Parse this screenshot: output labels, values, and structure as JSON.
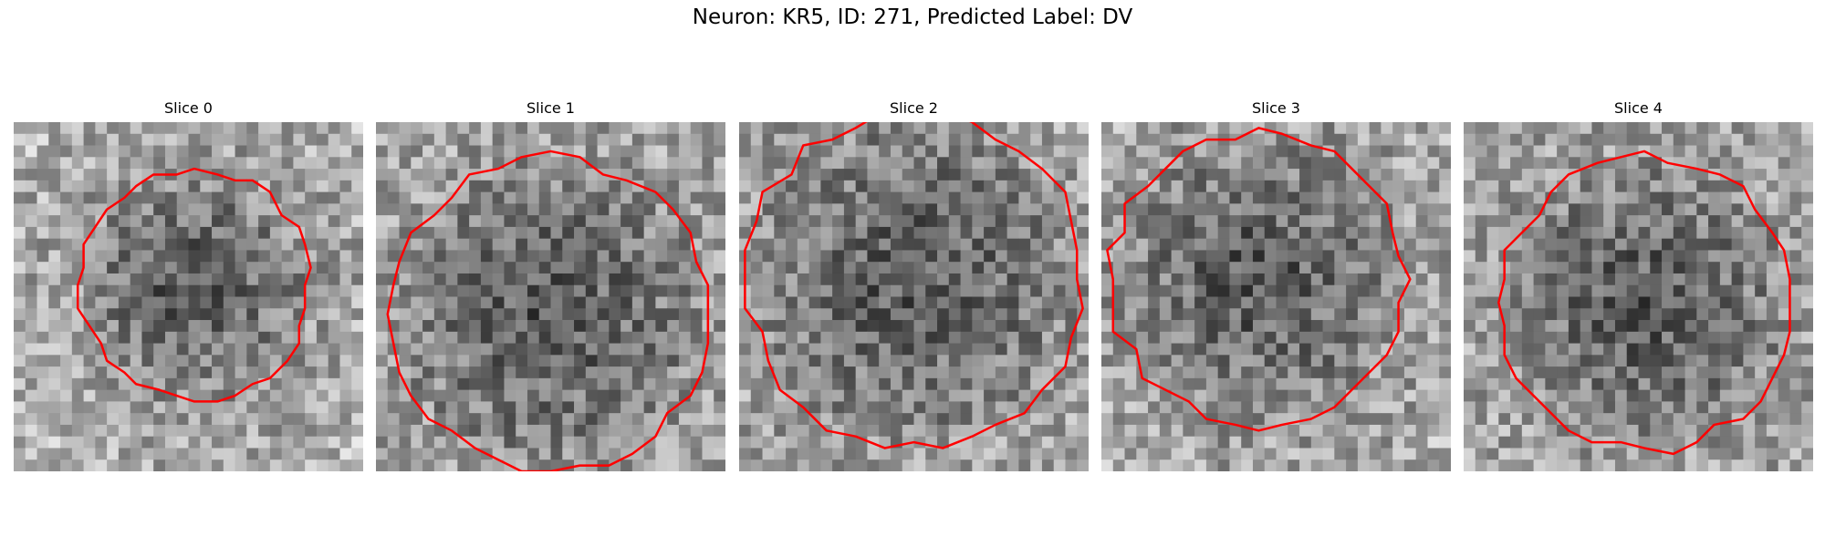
{
  "figure": {
    "title": "Neuron: KR5, ID: 271, Predicted Label: DV"
  },
  "panels": [
    {
      "title": "Slice 0",
      "seed": 11,
      "center": [
        0.52,
        0.47
      ],
      "radius": 0.33,
      "darkness": 0.62
    },
    {
      "title": "Slice 1",
      "seed": 23,
      "center": [
        0.5,
        0.55
      ],
      "radius": 0.45,
      "darkness": 0.5
    },
    {
      "title": "Slice 2",
      "seed": 37,
      "center": [
        0.5,
        0.45
      ],
      "radius": 0.48,
      "darkness": 0.42
    },
    {
      "title": "Slice 3",
      "seed": 41,
      "center": [
        0.45,
        0.45
      ],
      "radius": 0.42,
      "darkness": 0.52
    },
    {
      "title": "Slice 4",
      "seed": 53,
      "center": [
        0.52,
        0.52
      ],
      "radius": 0.42,
      "darkness": 0.45
    }
  ],
  "contour_color": "#ff0000"
}
